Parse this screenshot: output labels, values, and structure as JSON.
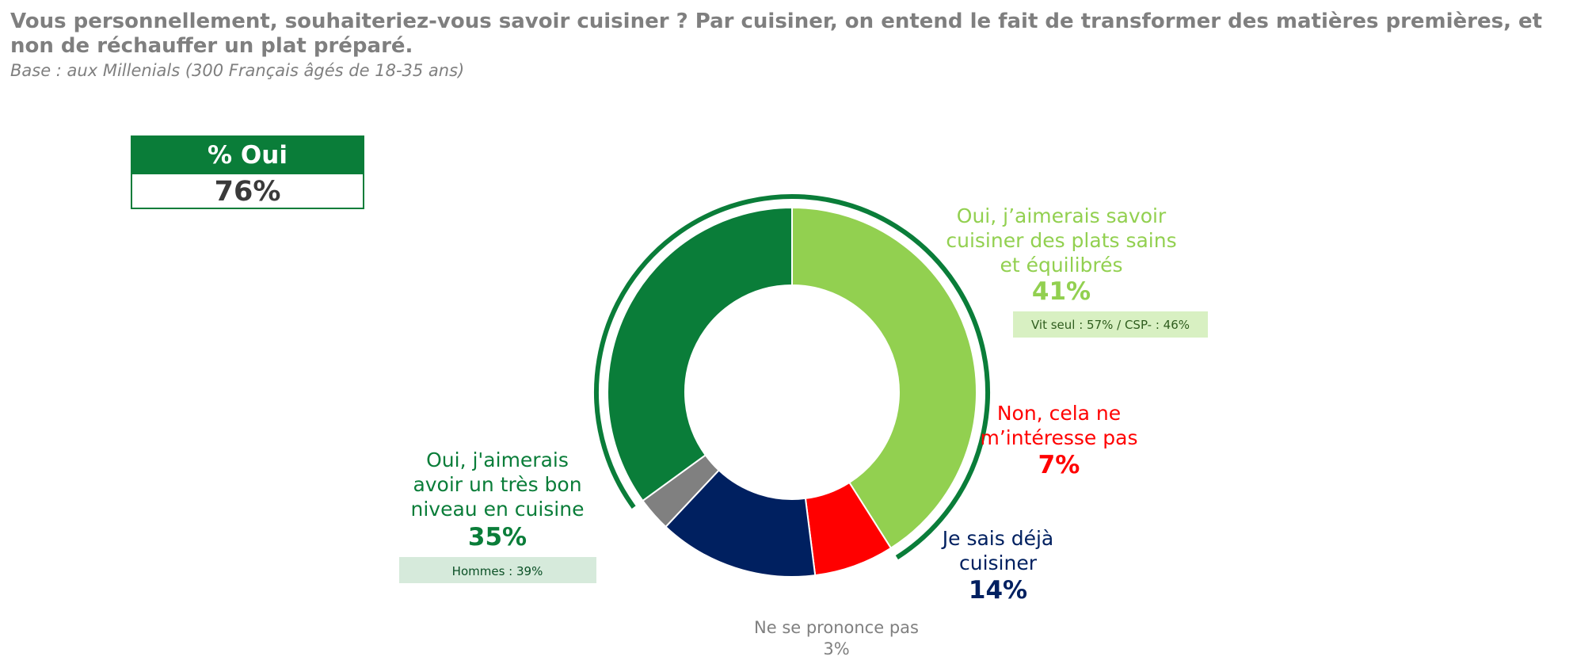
{
  "header": {
    "title": "Vous personnellement, souhaiteriez-vous savoir cuisiner ? Par cuisiner, on entend le fait de transformer des matières premières, et non de réchauffer un plat préparé.",
    "subtitle": "Base : aux Millenials (300 Français âgés de 18-35 ans)"
  },
  "summary": {
    "label": "% Oui",
    "value": "76%"
  },
  "colors": {
    "title": "#7f7f7f",
    "dark_green": "#0a7d39",
    "light_green": "#92d050",
    "red": "#ff0000",
    "navy": "#002060",
    "gray": "#808080",
    "note_green_bg": "#d8f0c2",
    "note_darkgreen_bg": "#d6eadb"
  },
  "chart_data": {
    "type": "pie",
    "style": "donut",
    "start": "top, clockwise",
    "bracket_over_series": [
      "Oui, j'aimerais avoir un très bon niveau en cuisine",
      "Oui, j’aimerais savoir cuisiner des plats sains et équilibrés"
    ],
    "bracket_label": "% Oui",
    "series": [
      {
        "name": "Oui, j’aimerais savoir cuisiner des plats sains et équilibrés",
        "label_lines": [
          "Oui, j’aimerais savoir",
          "cuisiner des plats sains",
          "et équilibrés"
        ],
        "value": 41,
        "value_label": "41%",
        "color": "#92d050",
        "note": "Vit seul : 57% / CSP- : 46%"
      },
      {
        "name": "Non, cela ne m’intéresse pas",
        "label_lines": [
          "Non, cela ne",
          "m’intéresse pas"
        ],
        "value": 7,
        "value_label": "7%",
        "color": "#ff0000"
      },
      {
        "name": "Je sais déjà cuisiner",
        "label_lines": [
          "Je sais déjà",
          "cuisiner"
        ],
        "value": 14,
        "value_label": "14%",
        "color": "#002060"
      },
      {
        "name": "Ne se prononce pas",
        "label_lines": [
          "Ne se prononce pas"
        ],
        "value": 3,
        "value_label": "3%",
        "color": "#808080"
      },
      {
        "name": "Oui, j'aimerais avoir un très bon niveau en cuisine",
        "label_lines": [
          "Oui, j'aimerais",
          "avoir un très bon",
          "niveau en cuisine"
        ],
        "value": 35,
        "value_label": "35%",
        "color": "#0a7d39",
        "note": "Hommes : 39%"
      }
    ]
  }
}
